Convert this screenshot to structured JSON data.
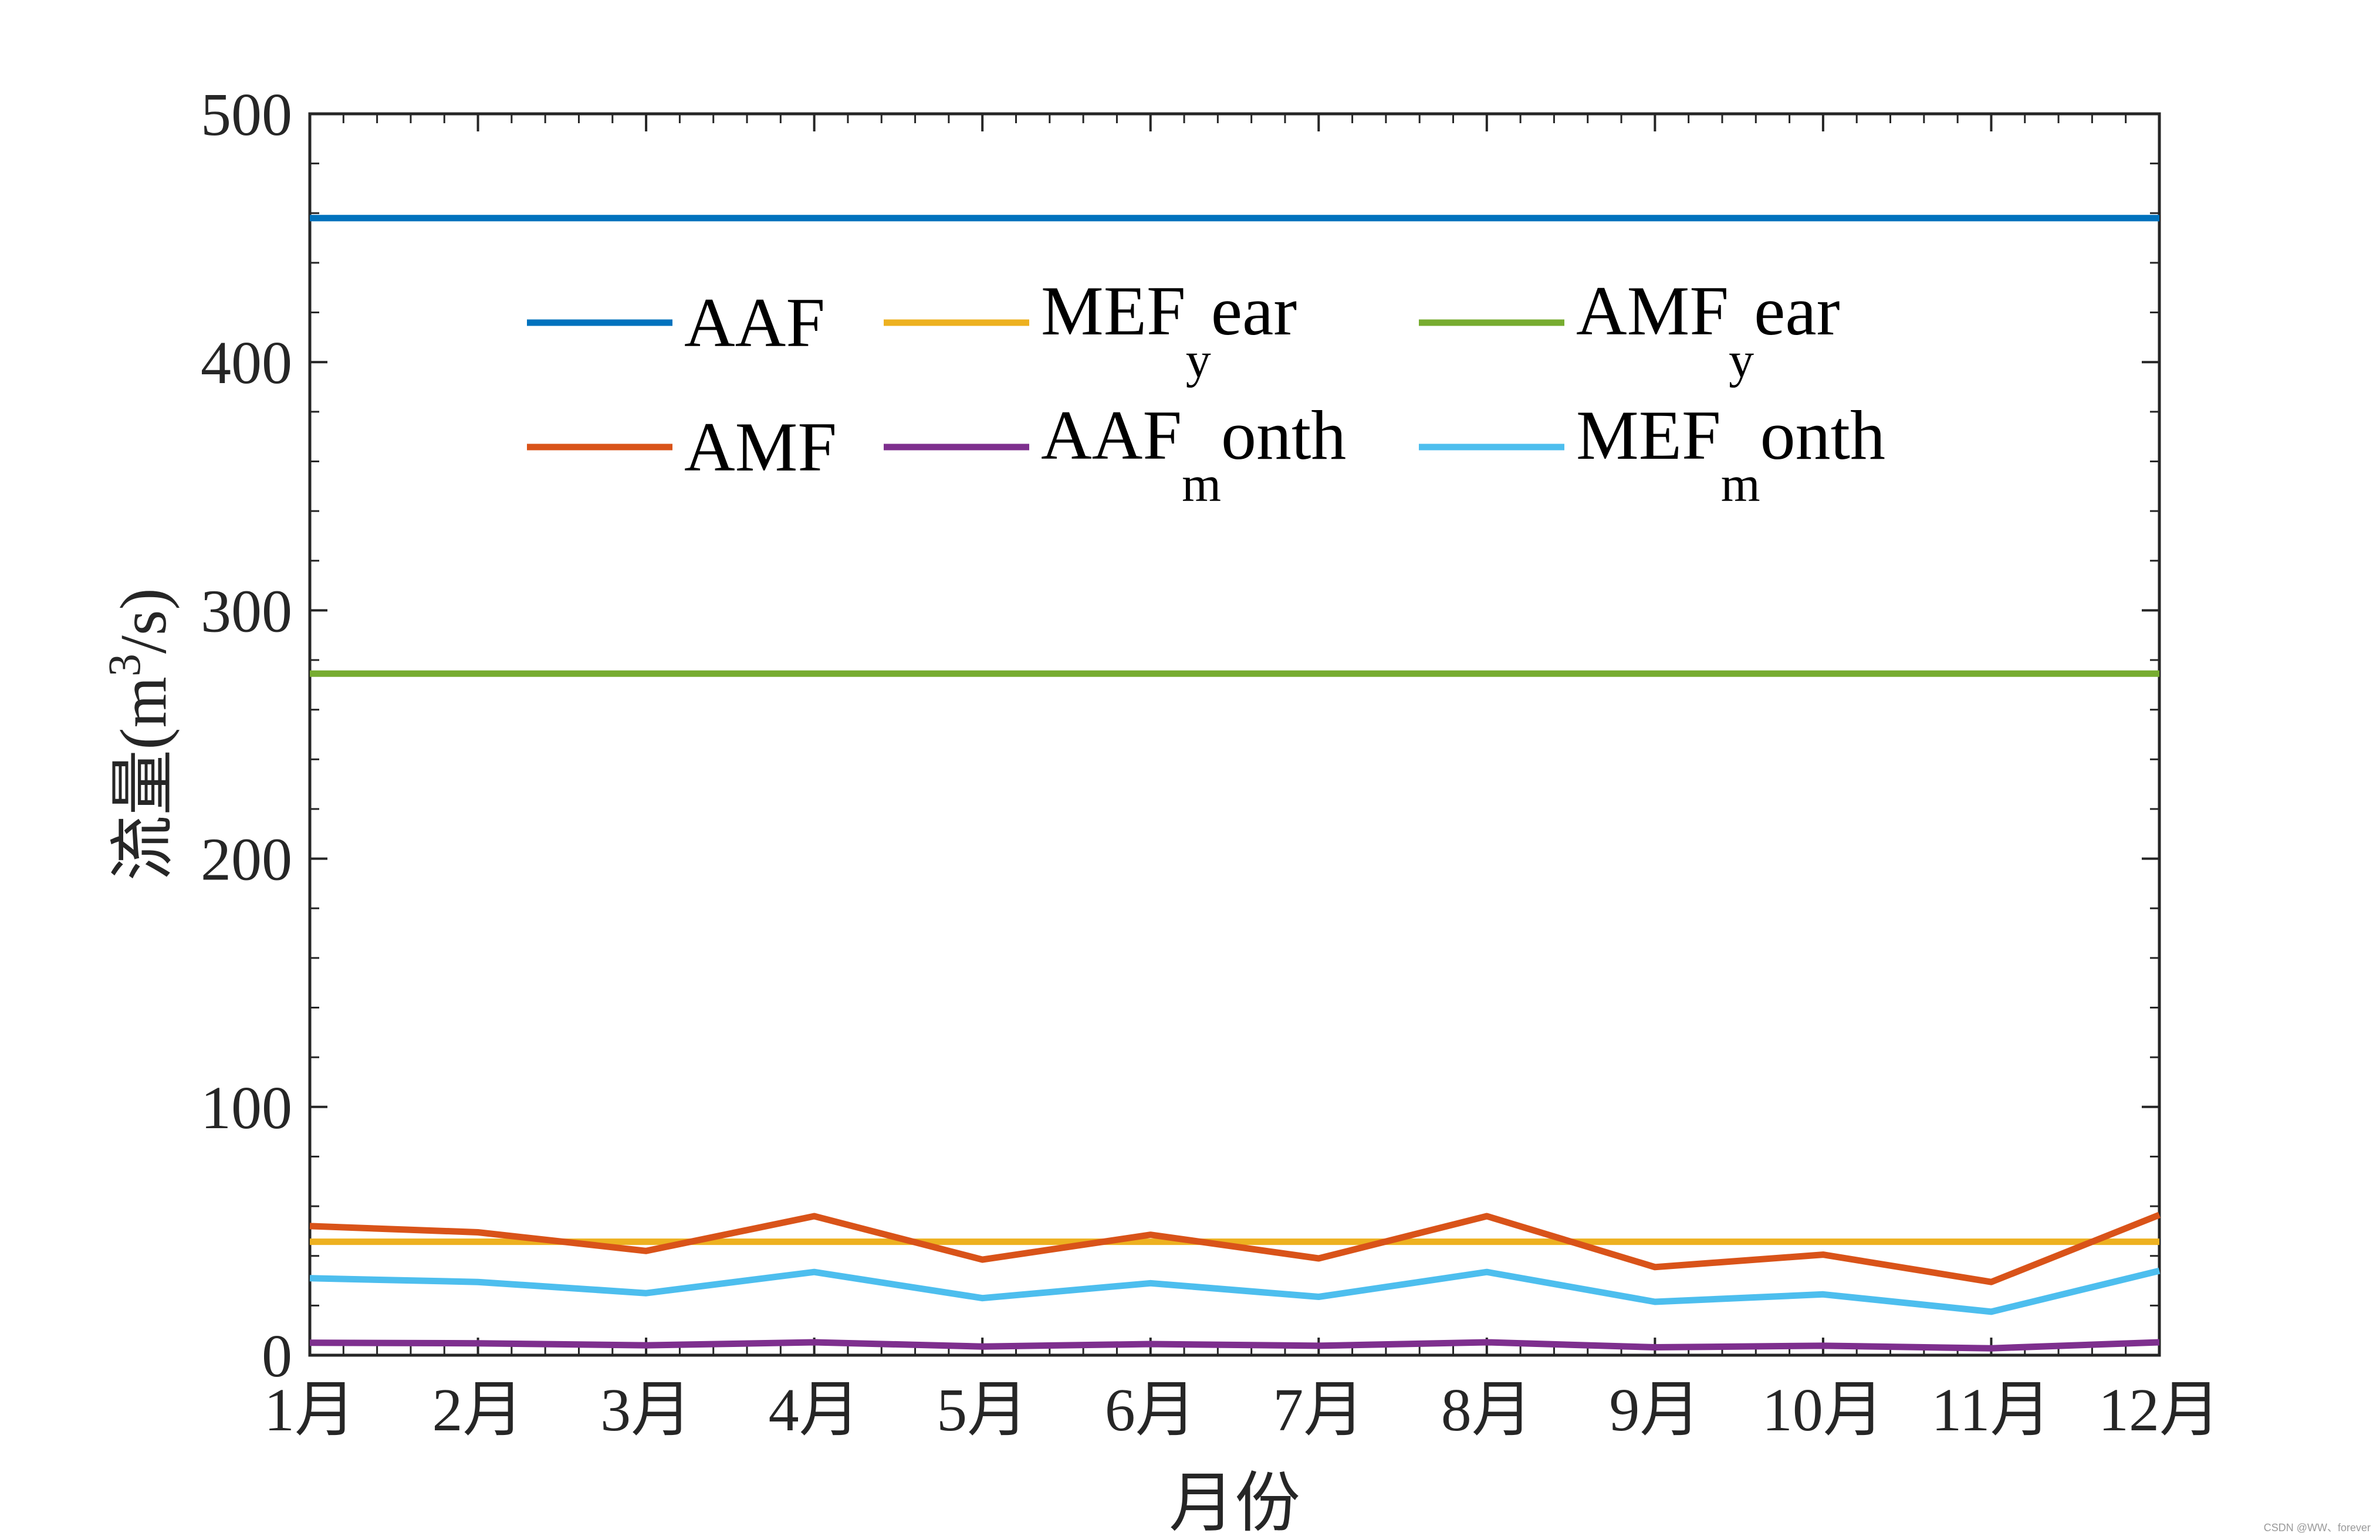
{
  "chart_data": {
    "type": "line",
    "title": "",
    "xlabel": "月份",
    "ylabel_main": "流量(m",
    "ylabel_sup": "3",
    "ylabel_tail": "/s)",
    "categories": [
      "1月",
      "2月",
      "3月",
      "4月",
      "5月",
      "6月",
      "7月",
      "8月",
      "9月",
      "10月",
      "11月",
      "12月"
    ],
    "ylim": [
      0,
      500
    ],
    "yticks": [
      "0",
      "100",
      "200",
      "300",
      "400",
      "500"
    ],
    "grid": false,
    "legend_position": "top-center",
    "series": [
      {
        "id": "aaf",
        "name": "AAF",
        "label_main": "AAF",
        "label_sub": "",
        "label_tail": "",
        "color": "#0072BD",
        "values": [
          458,
          458,
          458,
          458,
          458,
          458,
          458,
          458,
          458,
          458,
          458,
          458
        ]
      },
      {
        "id": "mef-year",
        "name": "MEF_year",
        "label_main": "MEF",
        "label_sub": "y",
        "label_tail": "ear",
        "color": "#EDB120",
        "values": [
          45.7,
          45.7,
          45.7,
          45.7,
          45.7,
          45.7,
          45.7,
          45.7,
          45.7,
          45.7,
          45.7,
          45.7
        ]
      },
      {
        "id": "amf-year",
        "name": "AMF_year",
        "label_main": "AMF",
        "label_sub": "y",
        "label_tail": "ear",
        "color": "#77AC30",
        "values": [
          274.5,
          274.5,
          274.5,
          274.5,
          274.5,
          274.5,
          274.5,
          274.5,
          274.5,
          274.5,
          274.5,
          274.5
        ]
      },
      {
        "id": "amf",
        "name": "AMF",
        "label_main": "AMF",
        "label_sub": "",
        "label_tail": "",
        "color": "#D95319",
        "values": [
          52,
          49.5,
          42,
          56,
          38.5,
          48.5,
          39,
          56,
          35.5,
          40.5,
          29.5,
          56.5
        ]
      },
      {
        "id": "aaf-month",
        "name": "AAF_month",
        "label_main": "AAF",
        "label_sub": "m",
        "label_tail": "onth",
        "color": "#7E2F8E",
        "values": [
          5,
          4.8,
          4,
          5.2,
          3.5,
          4.5,
          3.8,
          5.2,
          3.2,
          3.8,
          2.8,
          5.2
        ]
      },
      {
        "id": "mef-month",
        "name": "MEF_month",
        "label_main": "MEF",
        "label_sub": "m",
        "label_tail": "onth",
        "color": "#4DBEEE",
        "values": [
          31,
          29.5,
          25,
          33.5,
          23,
          29,
          23.5,
          33.5,
          21.5,
          24.5,
          17.5,
          34
        ]
      }
    ]
  },
  "watermark": "CSDN @WW、forever"
}
